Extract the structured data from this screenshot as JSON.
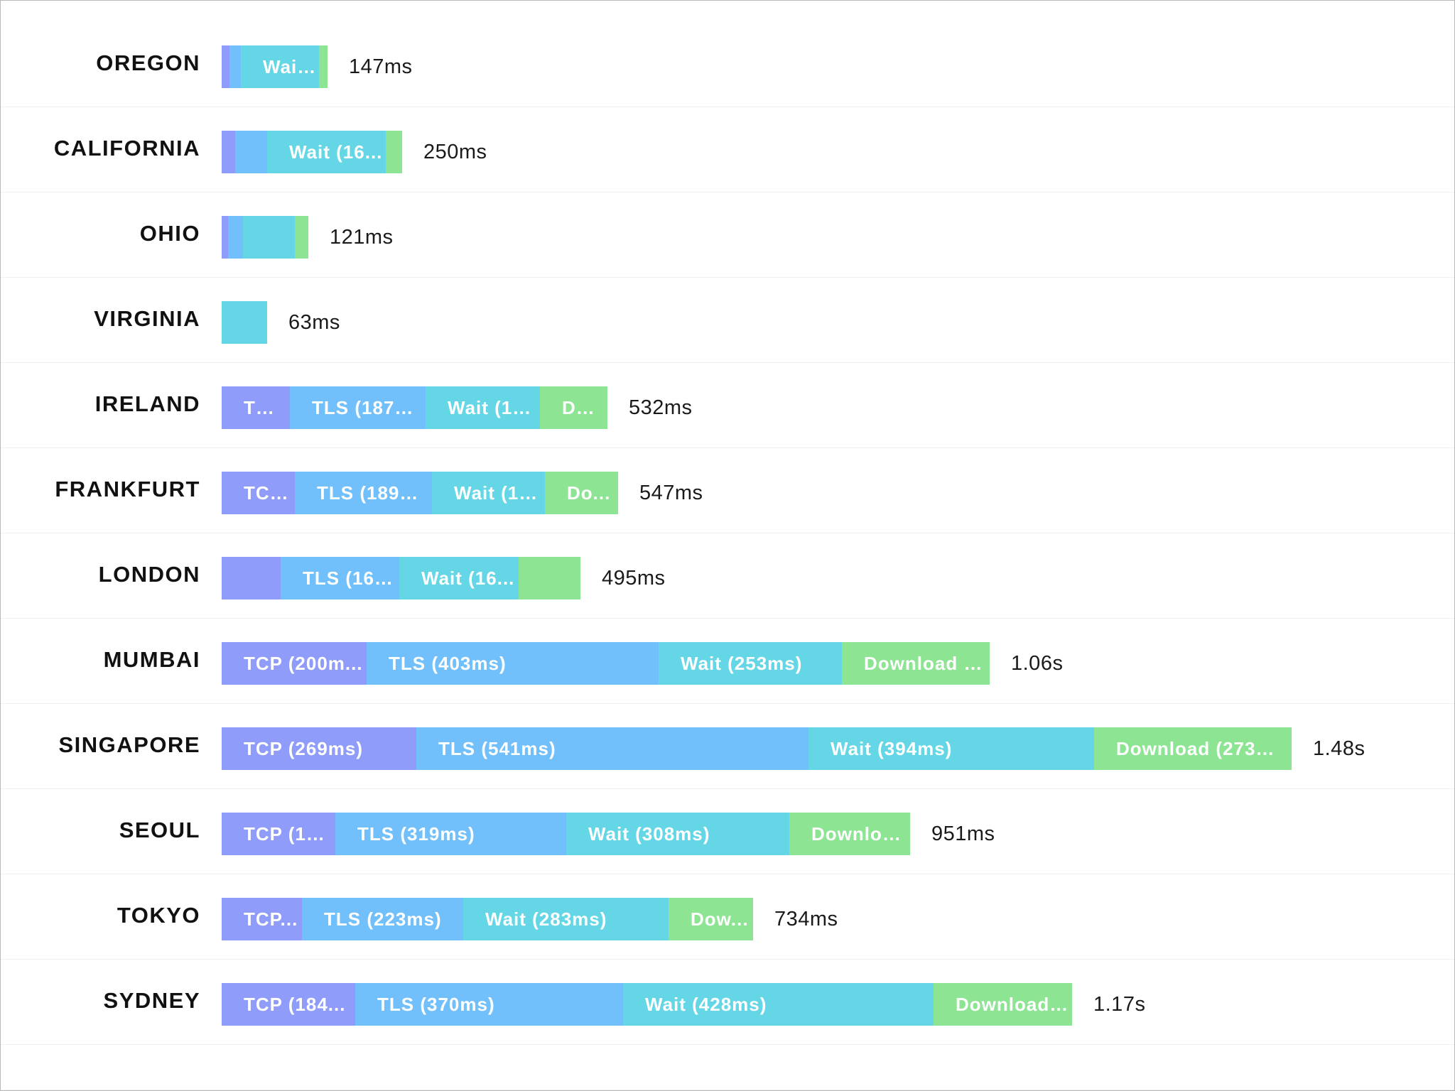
{
  "colors": {
    "tcp": "#8f9cf9",
    "tls": "#72c0fb",
    "wait": "#64d6e6",
    "download": "#8de594"
  },
  "rows": [
    {
      "region": "OREGON",
      "total": "147ms",
      "segments": [
        {
          "phase": "tcp",
          "ms": 11,
          "label": ""
        },
        {
          "phase": "tls",
          "ms": 16,
          "label": ""
        },
        {
          "phase": "wait",
          "ms": 108,
          "label": "Wait..."
        },
        {
          "phase": "download",
          "ms": 12,
          "label": ""
        }
      ]
    },
    {
      "region": "CALIFORNIA",
      "total": "250ms",
      "segments": [
        {
          "phase": "tcp",
          "ms": 19,
          "label": ""
        },
        {
          "phase": "tls",
          "ms": 44,
          "label": ""
        },
        {
          "phase": "wait",
          "ms": 164,
          "label": "Wait (16..."
        },
        {
          "phase": "download",
          "ms": 23,
          "label": ""
        }
      ]
    },
    {
      "region": "OHIO",
      "total": "121ms",
      "segments": [
        {
          "phase": "tcp",
          "ms": 9,
          "label": ""
        },
        {
          "phase": "tls",
          "ms": 21,
          "label": ""
        },
        {
          "phase": "wait",
          "ms": 72,
          "label": ""
        },
        {
          "phase": "download",
          "ms": 19,
          "label": ""
        }
      ]
    },
    {
      "region": "VIRGINIA",
      "total": "63ms",
      "segments": [
        {
          "phase": "wait",
          "ms": 63,
          "label": ""
        }
      ]
    },
    {
      "region": "IRELAND",
      "total": "532ms",
      "segments": [
        {
          "phase": "tcp",
          "ms": 94,
          "label": "TC..."
        },
        {
          "phase": "tls",
          "ms": 187,
          "label": "TLS (187m..."
        },
        {
          "phase": "wait",
          "ms": 158,
          "label": "Wait (15..."
        },
        {
          "phase": "download",
          "ms": 93,
          "label": "Do..."
        }
      ]
    },
    {
      "region": "FRANKFURT",
      "total": "547ms",
      "segments": [
        {
          "phase": "tcp",
          "ms": 101,
          "label": "TCP..."
        },
        {
          "phase": "tls",
          "ms": 189,
          "label": "TLS (189m..."
        },
        {
          "phase": "wait",
          "ms": 156,
          "label": "Wait (15..."
        },
        {
          "phase": "download",
          "ms": 101,
          "label": "Do..."
        }
      ]
    },
    {
      "region": "LONDON",
      "total": "495ms",
      "segments": [
        {
          "phase": "tcp",
          "ms": 81,
          "label": ""
        },
        {
          "phase": "tls",
          "ms": 164,
          "label": "TLS (164..."
        },
        {
          "phase": "wait",
          "ms": 165,
          "label": "Wait (16..."
        },
        {
          "phase": "download",
          "ms": 85,
          "label": ""
        }
      ]
    },
    {
      "region": "MUMBAI",
      "total": "1.06s",
      "segments": [
        {
          "phase": "tcp",
          "ms": 200,
          "label": "TCP (200m..."
        },
        {
          "phase": "tls",
          "ms": 403,
          "label": "TLS (403ms)"
        },
        {
          "phase": "wait",
          "ms": 253,
          "label": "Wait (253ms)"
        },
        {
          "phase": "download",
          "ms": 204,
          "label": "Download (..."
        }
      ]
    },
    {
      "region": "SINGAPORE",
      "total": "1.48s",
      "segments": [
        {
          "phase": "tcp",
          "ms": 269,
          "label": "TCP (269ms)"
        },
        {
          "phase": "tls",
          "ms": 541,
          "label": "TLS (541ms)"
        },
        {
          "phase": "wait",
          "ms": 394,
          "label": "Wait (394ms)"
        },
        {
          "phase": "download",
          "ms": 273,
          "label": "Download (273m..."
        }
      ]
    },
    {
      "region": "SEOUL",
      "total": "951ms",
      "segments": [
        {
          "phase": "tcp",
          "ms": 157,
          "label": "TCP (15..."
        },
        {
          "phase": "tls",
          "ms": 319,
          "label": "TLS (319ms)"
        },
        {
          "phase": "wait",
          "ms": 308,
          "label": "Wait (308ms)"
        },
        {
          "phase": "download",
          "ms": 167,
          "label": "Downloa..."
        }
      ]
    },
    {
      "region": "TOKYO",
      "total": "734ms",
      "segments": [
        {
          "phase": "tcp",
          "ms": 111,
          "label": "TCP..."
        },
        {
          "phase": "tls",
          "ms": 223,
          "label": "TLS (223ms)"
        },
        {
          "phase": "wait",
          "ms": 283,
          "label": "Wait (283ms)"
        },
        {
          "phase": "download",
          "ms": 117,
          "label": "Dow..."
        }
      ]
    },
    {
      "region": "SYDNEY",
      "total": "1.17s",
      "segments": [
        {
          "phase": "tcp",
          "ms": 184,
          "label": "TCP (184..."
        },
        {
          "phase": "tls",
          "ms": 370,
          "label": "TLS (370ms)"
        },
        {
          "phase": "wait",
          "ms": 428,
          "label": "Wait (428ms)"
        },
        {
          "phase": "download",
          "ms": 191,
          "label": "Download ..."
        }
      ]
    }
  ]
}
